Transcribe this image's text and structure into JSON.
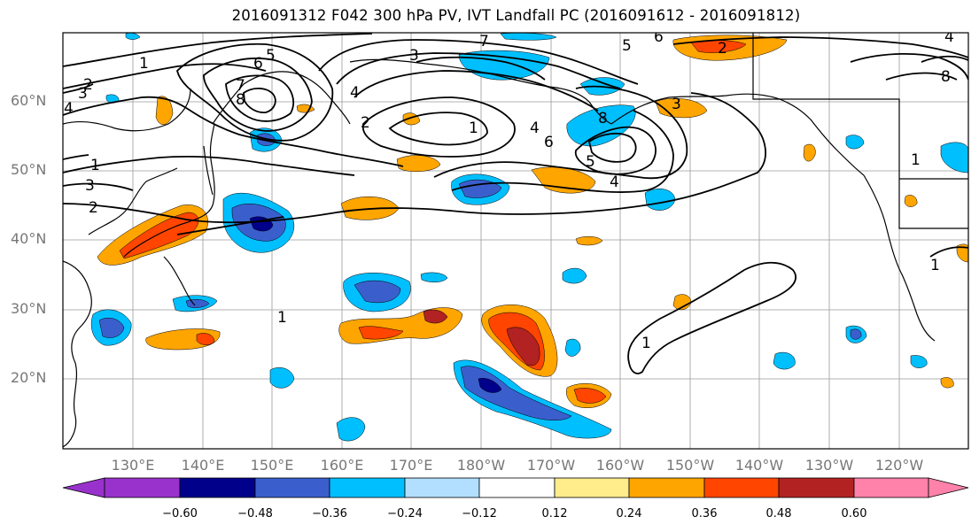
{
  "title": "2016091312 F042 300 hPa PV, IVT Landfall PC (2016091612 - 2016091812)",
  "lat_labels": [
    "60°N",
    "50°N",
    "40°N",
    "30°N",
    "20°N"
  ],
  "lon_labels": [
    "130°E",
    "140°E",
    "150°E",
    "160°E",
    "170°E",
    "180°W",
    "170°W",
    "160°W",
    "150°W",
    "140°W",
    "130°W",
    "120°W"
  ],
  "colorbar": {
    "ticks": [
      "−0.60",
      "−0.48",
      "−0.36",
      "−0.24",
      "−0.12",
      "0.12",
      "0.24",
      "0.36",
      "0.48",
      "0.60"
    ],
    "colors": [
      "#9932cc",
      "#00008b",
      "#3a5fcd",
      "#00bfff",
      "#b2dfff",
      "#ffffff",
      "#ffec8b",
      "#ffa500",
      "#ff4500",
      "#b22222",
      "#ff82ab"
    ]
  },
  "contour_labels": [
    "1",
    "2",
    "3",
    "4",
    "5",
    "6",
    "7",
    "8"
  ]
}
